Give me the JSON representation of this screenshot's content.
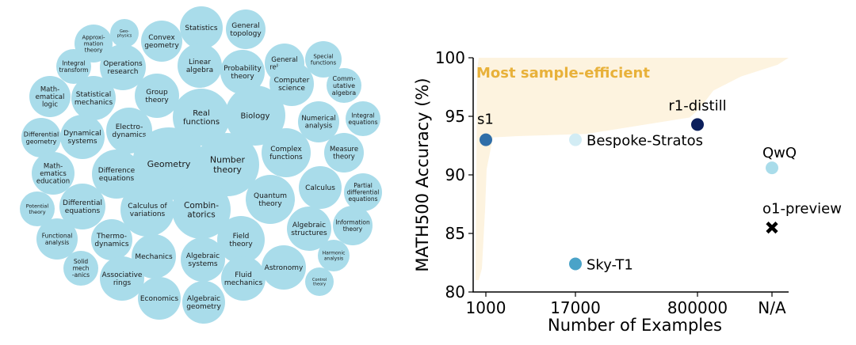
{
  "bubble_chart": {
    "bubble_color": "#a9dcea",
    "topics": [
      {
        "label": "Approxi-\nmation\ntheory"
      },
      {
        "label": "Geo-\nphysics"
      },
      {
        "label": "Convex\ngeometry"
      },
      {
        "label": "Statistics"
      },
      {
        "label": "General\ntopology"
      },
      {
        "label": "General\nrelativity"
      },
      {
        "label": "Special\nfunctions"
      },
      {
        "label": "Integral\ntransform"
      },
      {
        "label": "Operations\nresearch"
      },
      {
        "label": "Linear\nalgebra"
      },
      {
        "label": "Probability\ntheory"
      },
      {
        "label": "Computer\nscience"
      },
      {
        "label": "Comm-\nutative\nalgebra"
      },
      {
        "label": "Math-\nematical\nlogic"
      },
      {
        "label": "Statistical\nmechanics"
      },
      {
        "label": "Group\ntheory"
      },
      {
        "label": "Real\nfunctions"
      },
      {
        "label": "Biology"
      },
      {
        "label": "Numerical\nanalysis"
      },
      {
        "label": "Integral\nequations"
      },
      {
        "label": "Differential\ngeometry"
      },
      {
        "label": "Dynamical\nsystems"
      },
      {
        "label": "Electro-\ndynamics"
      },
      {
        "label": "Geometry"
      },
      {
        "label": "Number\ntheory"
      },
      {
        "label": "Complex\nfunctions"
      },
      {
        "label": "Measure\ntheory"
      },
      {
        "label": "Math-\nematics\neducation"
      },
      {
        "label": "Difference\nequations"
      },
      {
        "label": "Calculus"
      },
      {
        "label": "Partial\ndifferential\nequations"
      },
      {
        "label": "Potential\ntheory"
      },
      {
        "label": "Differential\nequations"
      },
      {
        "label": "Calculus of\nvariations"
      },
      {
        "label": "Combin-\natorics"
      },
      {
        "label": "Quantum\ntheory"
      },
      {
        "label": "Information\ntheory"
      },
      {
        "label": "Algebraic\nstructures"
      },
      {
        "label": "Functional\nanalysis"
      },
      {
        "label": "Thermo-\ndynamics"
      },
      {
        "label": "Field\ntheory"
      },
      {
        "label": "Harmonic\nanalysis"
      },
      {
        "label": "Solid\nmech\n-anics"
      },
      {
        "label": "Mechanics"
      },
      {
        "label": "Algebraic\nsystems"
      },
      {
        "label": "Astronomy"
      },
      {
        "label": "Associative\nrings"
      },
      {
        "label": "Fluid\nmechanics"
      },
      {
        "label": "Control\ntheory"
      },
      {
        "label": "Economics"
      },
      {
        "label": "Algebraic\ngeometry"
      }
    ]
  },
  "chart_data": {
    "type": "scatter",
    "xlabel": "Number of Examples",
    "ylabel": "MATH500 Accuracy (%)",
    "x_categories": [
      "1000",
      "17000",
      "800000",
      "N/A"
    ],
    "y_ticks": [
      80,
      85,
      90,
      95,
      100
    ],
    "ylim": [
      80,
      100
    ],
    "annotation": "Most sample-efficient",
    "annotation_color": "#e8b13a",
    "shade_color": "#fdf3df",
    "points": [
      {
        "label": "s1",
        "x": "1000",
        "y": 93.0,
        "color": "#2f6ea8",
        "marker": "circle"
      },
      {
        "label": "Bespoke-Stratos",
        "x": "17000",
        "y": 93.0,
        "color": "#d2ecf4",
        "marker": "circle"
      },
      {
        "label": "Sky-T1",
        "x": "17000",
        "y": 82.4,
        "color": "#4aa3c8",
        "marker": "circle"
      },
      {
        "label": "r1-distill",
        "x": "800000",
        "y": 94.3,
        "color": "#0b1f5c",
        "marker": "circle"
      },
      {
        "label": "QwQ",
        "x": "N/A",
        "y": 90.6,
        "color": "#a9dcea",
        "marker": "circle"
      },
      {
        "label": "o1-preview",
        "x": "N/A",
        "y": 85.5,
        "color": "#000000",
        "marker": "cross"
      }
    ]
  }
}
